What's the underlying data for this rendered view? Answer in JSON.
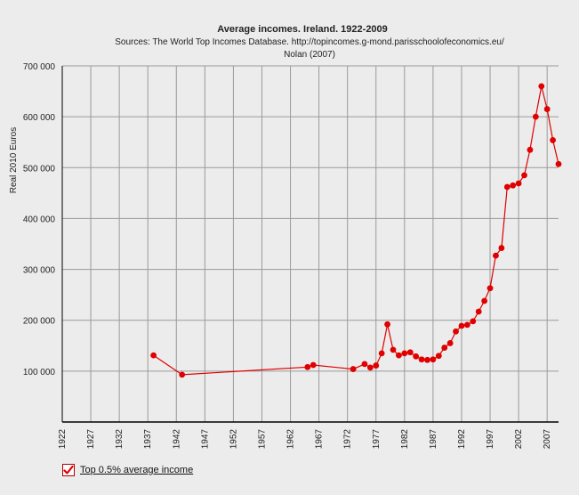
{
  "chart_data": {
    "type": "line",
    "title": "Average incomes. Ireland. 1922-2009",
    "subtitle_lines": [
      "Sources: The World Top Incomes Database. http://topincomes.g-mond.parisschoolofeconomics.eu/",
      "Nolan (2007)"
    ],
    "xlabel": "",
    "ylabel": "Real 2010 Euros",
    "xlim": [
      1922,
      2009
    ],
    "ylim": [
      0,
      700000
    ],
    "x_ticks": [
      1922,
      1927,
      1932,
      1937,
      1942,
      1947,
      1952,
      1957,
      1962,
      1967,
      1972,
      1977,
      1982,
      1987,
      1992,
      1997,
      2002,
      2007
    ],
    "y_ticks": [
      {
        "value": 100000,
        "label": "100 000"
      },
      {
        "value": 200000,
        "label": "200 000"
      },
      {
        "value": 300000,
        "label": "300 000"
      },
      {
        "value": 400000,
        "label": "400 000"
      },
      {
        "value": 500000,
        "label": "500 000"
      },
      {
        "value": 600000,
        "label": "600 000"
      },
      {
        "value": 700000,
        "label": "700 000"
      }
    ],
    "grid": true,
    "legend_position": "bottom-left",
    "series": [
      {
        "name": "Top 0.5% average income",
        "color": "#e00000",
        "points": [
          [
            1938,
            131000
          ],
          [
            1943,
            93000
          ],
          [
            1965,
            108000
          ],
          [
            1966,
            112000
          ],
          [
            1973,
            104000
          ],
          [
            1975,
            114000
          ],
          [
            1976,
            107000
          ],
          [
            1977,
            111000
          ],
          [
            1978,
            135000
          ],
          [
            1979,
            192000
          ],
          [
            1980,
            142000
          ],
          [
            1981,
            131000
          ],
          [
            1982,
            135000
          ],
          [
            1983,
            137000
          ],
          [
            1984,
            129000
          ],
          [
            1985,
            123000
          ],
          [
            1986,
            122000
          ],
          [
            1987,
            123000
          ],
          [
            1988,
            130000
          ],
          [
            1989,
            146000
          ],
          [
            1990,
            155000
          ],
          [
            1991,
            178000
          ],
          [
            1992,
            189000
          ],
          [
            1993,
            191000
          ],
          [
            1994,
            198000
          ],
          [
            1995,
            217000
          ],
          [
            1996,
            238000
          ],
          [
            1997,
            263000
          ],
          [
            1998,
            327000
          ],
          [
            1999,
            342000
          ],
          [
            2000,
            462000
          ],
          [
            2001,
            465000
          ],
          [
            2002,
            469000
          ],
          [
            2003,
            485000
          ],
          [
            2004,
            535000
          ],
          [
            2005,
            600000
          ],
          [
            2006,
            660000
          ],
          [
            2007,
            615000
          ],
          [
            2008,
            554000
          ],
          [
            2009,
            507000
          ]
        ]
      }
    ]
  }
}
